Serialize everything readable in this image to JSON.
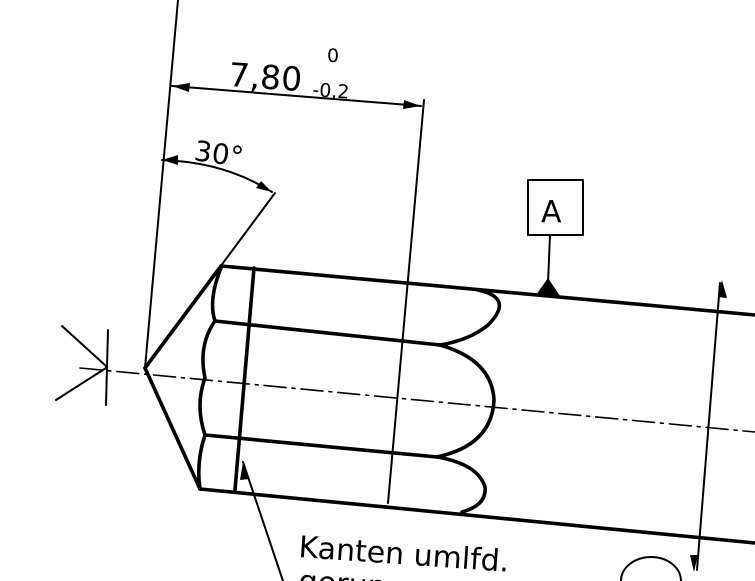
{
  "dimension_length": {
    "nominal": "7,80",
    "upper_tolerance": "0",
    "lower_tolerance": "-0,2"
  },
  "angle_dimension": {
    "value": "30°"
  },
  "datum_feature": {
    "label": "A"
  },
  "note": {
    "line1": "Kanten umlfd.",
    "line2": "gerun..."
  }
}
